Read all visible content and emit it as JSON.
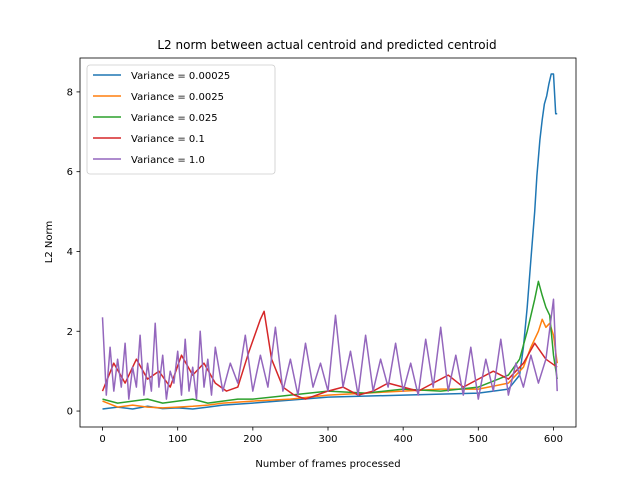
{
  "chart_data": {
    "type": "line",
    "title": "L2 norm between actual centroid and predicted centroid",
    "xlabel": "Number of frames processed",
    "ylabel": "L2 Norm",
    "xlim": [
      -30,
      630
    ],
    "ylim": [
      -0.4,
      8.85
    ],
    "xticks": [
      0,
      100,
      200,
      300,
      400,
      500,
      600
    ],
    "yticks": [
      0,
      2,
      4,
      6,
      8
    ],
    "grid": false,
    "legend_position": "top-left",
    "series": [
      {
        "name": "Variance = 0.00025",
        "color": "#1f77b4",
        "x": [
          0,
          20,
          40,
          60,
          80,
          100,
          120,
          140,
          160,
          200,
          300,
          400,
          500,
          540,
          555,
          560,
          565,
          570,
          575,
          578,
          582,
          585,
          588,
          591,
          594,
          597,
          600,
          603,
          605
        ],
        "y": [
          0.05,
          0.1,
          0.05,
          0.12,
          0.06,
          0.08,
          0.05,
          0.1,
          0.15,
          0.2,
          0.35,
          0.4,
          0.45,
          0.55,
          0.9,
          1.6,
          2.6,
          3.8,
          5.0,
          5.9,
          6.8,
          7.3,
          7.7,
          7.9,
          8.2,
          8.45,
          8.45,
          7.45,
          7.45
        ]
      },
      {
        "name": "Variance = 0.0025",
        "color": "#ff7f0e",
        "x": [
          0,
          20,
          40,
          60,
          80,
          100,
          120,
          140,
          160,
          200,
          250,
          300,
          350,
          400,
          450,
          500,
          540,
          560,
          570,
          580,
          585,
          590,
          595,
          600,
          605
        ],
        "y": [
          0.25,
          0.1,
          0.15,
          0.1,
          0.08,
          0.1,
          0.12,
          0.15,
          0.2,
          0.25,
          0.3,
          0.4,
          0.45,
          0.5,
          0.55,
          0.55,
          0.7,
          1.1,
          1.6,
          2.0,
          2.3,
          2.1,
          2.2,
          1.9,
          1.2
        ]
      },
      {
        "name": "Variance = 0.025",
        "color": "#2ca02c",
        "x": [
          0,
          20,
          40,
          60,
          80,
          100,
          120,
          140,
          160,
          180,
          200,
          250,
          300,
          350,
          400,
          450,
          500,
          540,
          555,
          565,
          575,
          580,
          585,
          590,
          595,
          600,
          605
        ],
        "y": [
          0.3,
          0.2,
          0.25,
          0.3,
          0.2,
          0.25,
          0.3,
          0.2,
          0.25,
          0.3,
          0.3,
          0.4,
          0.5,
          0.45,
          0.55,
          0.5,
          0.6,
          0.9,
          1.3,
          2.0,
          2.8,
          3.25,
          2.9,
          2.6,
          2.4,
          1.4,
          0.8
        ]
      },
      {
        "name": "Variance = 0.1",
        "color": "#d62728",
        "x": [
          0,
          15,
          30,
          45,
          60,
          75,
          90,
          105,
          120,
          135,
          150,
          165,
          180,
          195,
          210,
          215,
          225,
          240,
          255,
          270,
          285,
          300,
          320,
          340,
          360,
          380,
          400,
          420,
          440,
          460,
          480,
          500,
          520,
          540,
          560,
          575,
          590,
          605
        ],
        "y": [
          0.5,
          1.2,
          0.7,
          1.3,
          0.8,
          1.0,
          0.6,
          1.4,
          0.9,
          1.2,
          0.7,
          0.5,
          0.6,
          1.5,
          2.3,
          2.5,
          1.3,
          0.6,
          0.4,
          0.3,
          0.4,
          0.5,
          0.6,
          0.4,
          0.5,
          0.7,
          0.6,
          0.5,
          0.7,
          0.9,
          0.6,
          0.8,
          1.0,
          0.8,
          1.2,
          1.7,
          1.3,
          1.1
        ]
      },
      {
        "name": "Variance = 1.0",
        "color": "#9467bd",
        "x": [
          0,
          5,
          10,
          15,
          20,
          25,
          30,
          35,
          40,
          45,
          50,
          55,
          60,
          65,
          70,
          75,
          80,
          85,
          90,
          95,
          100,
          105,
          110,
          115,
          120,
          125,
          130,
          135,
          140,
          145,
          150,
          160,
          170,
          180,
          190,
          200,
          210,
          220,
          230,
          240,
          250,
          260,
          270,
          280,
          290,
          300,
          310,
          320,
          330,
          340,
          350,
          360,
          370,
          380,
          390,
          400,
          410,
          420,
          430,
          440,
          450,
          460,
          470,
          480,
          490,
          500,
          510,
          520,
          530,
          540,
          550,
          560,
          570,
          580,
          590,
          600,
          605
        ],
        "y": [
          2.35,
          0.4,
          1.6,
          0.5,
          1.3,
          0.6,
          1.7,
          0.3,
          1.1,
          0.6,
          1.9,
          0.4,
          1.2,
          0.5,
          2.2,
          0.6,
          1.4,
          0.3,
          1.0,
          0.7,
          1.5,
          0.4,
          1.8,
          0.5,
          1.1,
          0.3,
          2.0,
          0.6,
          1.3,
          0.4,
          1.6,
          0.5,
          1.2,
          0.7,
          1.9,
          0.5,
          1.4,
          0.6,
          2.1,
          0.5,
          1.3,
          0.4,
          1.7,
          0.6,
          1.2,
          0.5,
          2.4,
          0.6,
          1.5,
          0.4,
          1.9,
          0.5,
          1.3,
          0.6,
          1.7,
          0.5,
          1.2,
          0.4,
          1.8,
          0.6,
          2.1,
          0.5,
          1.4,
          0.4,
          1.6,
          0.3,
          1.3,
          0.5,
          1.8,
          0.4,
          1.2,
          0.6,
          1.4,
          0.7,
          1.3,
          2.8,
          0.5
        ]
      }
    ]
  }
}
